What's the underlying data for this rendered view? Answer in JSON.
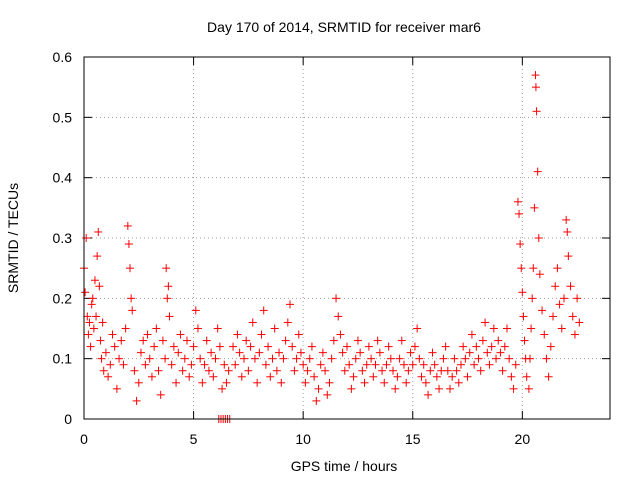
{
  "chart_data": {
    "type": "scatter",
    "title": "Day 170 of 2014, SRMTID for receiver mar6",
    "xlabel": "GPS time / hours",
    "ylabel": "SRMTID / TECUs",
    "xlim": [
      0,
      24
    ],
    "ylim": [
      0,
      0.6
    ],
    "xticks": [
      0,
      5,
      10,
      15,
      20
    ],
    "yticks": [
      0,
      0.1,
      0.2,
      0.3,
      0.4,
      0.5,
      0.6
    ],
    "xtick_labels": [
      "0",
      "5",
      "10",
      "15",
      "20"
    ],
    "ytick_labels": [
      "0",
      "0.1",
      "0.2",
      "0.3",
      "0.4",
      "0.5",
      "0.6"
    ],
    "grid": true,
    "marker": "+",
    "color": "#ff0000",
    "series": [
      {
        "name": "mar6",
        "points": [
          [
            0.0,
            0.25
          ],
          [
            0.05,
            0.21
          ],
          [
            0.1,
            0.3
          ],
          [
            0.15,
            0.17
          ],
          [
            0.2,
            0.14
          ],
          [
            0.25,
            0.16
          ],
          [
            0.3,
            0.12
          ],
          [
            0.35,
            0.19
          ],
          [
            0.4,
            0.2
          ],
          [
            0.45,
            0.15
          ],
          [
            0.5,
            0.23
          ],
          [
            0.55,
            0.17
          ],
          [
            0.6,
            0.27
          ],
          [
            0.65,
            0.31
          ],
          [
            0.7,
            0.22
          ],
          [
            0.75,
            0.13
          ],
          [
            0.8,
            0.1
          ],
          [
            0.85,
            0.16
          ],
          [
            0.9,
            0.08
          ],
          [
            1.0,
            0.11
          ],
          [
            1.1,
            0.07
          ],
          [
            1.2,
            0.09
          ],
          [
            1.3,
            0.14
          ],
          [
            1.4,
            0.12
          ],
          [
            1.5,
            0.05
          ],
          [
            1.6,
            0.1
          ],
          [
            1.7,
            0.13
          ],
          [
            1.8,
            0.09
          ],
          [
            1.9,
            0.15
          ],
          [
            2.0,
            0.32
          ],
          [
            2.05,
            0.29
          ],
          [
            2.1,
            0.25
          ],
          [
            2.15,
            0.2
          ],
          [
            2.2,
            0.18
          ],
          [
            2.3,
            0.08
          ],
          [
            2.4,
            0.03
          ],
          [
            2.5,
            0.06
          ],
          [
            2.6,
            0.11
          ],
          [
            2.7,
            0.13
          ],
          [
            2.8,
            0.09
          ],
          [
            2.9,
            0.14
          ],
          [
            3.0,
            0.1
          ],
          [
            3.1,
            0.07
          ],
          [
            3.2,
            0.12
          ],
          [
            3.3,
            0.15
          ],
          [
            3.4,
            0.08
          ],
          [
            3.5,
            0.04
          ],
          [
            3.6,
            0.13
          ],
          [
            3.7,
            0.1
          ],
          [
            3.75,
            0.25
          ],
          [
            3.8,
            0.2
          ],
          [
            3.85,
            0.22
          ],
          [
            3.9,
            0.17
          ],
          [
            4.0,
            0.09
          ],
          [
            4.1,
            0.12
          ],
          [
            4.2,
            0.06
          ],
          [
            4.3,
            0.11
          ],
          [
            4.4,
            0.14
          ],
          [
            4.5,
            0.08
          ],
          [
            4.6,
            0.1
          ],
          [
            4.7,
            0.13
          ],
          [
            4.8,
            0.07
          ],
          [
            4.9,
            0.09
          ],
          [
            5.0,
            0.12
          ],
          [
            5.1,
            0.18
          ],
          [
            5.2,
            0.15
          ],
          [
            5.3,
            0.1
          ],
          [
            5.4,
            0.06
          ],
          [
            5.5,
            0.09
          ],
          [
            5.6,
            0.13
          ],
          [
            5.7,
            0.08
          ],
          [
            5.8,
            0.11
          ],
          [
            5.9,
            0.07
          ],
          [
            6.0,
            0.1
          ],
          [
            6.1,
            0.15
          ],
          [
            6.2,
            0.12
          ],
          [
            6.3,
            0.05
          ],
          [
            6.4,
            0.09
          ],
          [
            6.5,
            0.06
          ],
          [
            6.6,
            0.08
          ],
          [
            6.15,
            0.0
          ],
          [
            6.25,
            0.0
          ],
          [
            6.35,
            0.0
          ],
          [
            6.45,
            0.0
          ],
          [
            6.55,
            0.0
          ],
          [
            6.65,
            0.0
          ],
          [
            6.8,
            0.12
          ],
          [
            6.9,
            0.09
          ],
          [
            7.0,
            0.14
          ],
          [
            7.1,
            0.11
          ],
          [
            7.2,
            0.07
          ],
          [
            7.3,
            0.1
          ],
          [
            7.4,
            0.13
          ],
          [
            7.5,
            0.08
          ],
          [
            7.6,
            0.12
          ],
          [
            7.7,
            0.16
          ],
          [
            7.8,
            0.1
          ],
          [
            7.9,
            0.06
          ],
          [
            8.0,
            0.11
          ],
          [
            8.1,
            0.14
          ],
          [
            8.2,
            0.18
          ],
          [
            8.3,
            0.09
          ],
          [
            8.4,
            0.12
          ],
          [
            8.5,
            0.07
          ],
          [
            8.6,
            0.1
          ],
          [
            8.7,
            0.15
          ],
          [
            8.8,
            0.08
          ],
          [
            8.9,
            0.11
          ],
          [
            9.0,
            0.06
          ],
          [
            9.1,
            0.1
          ],
          [
            9.2,
            0.13
          ],
          [
            9.3,
            0.16
          ],
          [
            9.4,
            0.19
          ],
          [
            9.5,
            0.12
          ],
          [
            9.6,
            0.08
          ],
          [
            9.7,
            0.1
          ],
          [
            9.8,
            0.14
          ],
          [
            9.9,
            0.11
          ],
          [
            10.0,
            0.09
          ],
          [
            10.1,
            0.06
          ],
          [
            10.2,
            0.08
          ],
          [
            10.3,
            0.1
          ],
          [
            10.4,
            0.12
          ],
          [
            10.5,
            0.07
          ],
          [
            10.6,
            0.03
          ],
          [
            10.7,
            0.05
          ],
          [
            10.8,
            0.09
          ],
          [
            10.9,
            0.11
          ],
          [
            11.0,
            0.08
          ],
          [
            11.1,
            0.04
          ],
          [
            11.2,
            0.06
          ],
          [
            11.3,
            0.1
          ],
          [
            11.4,
            0.13
          ],
          [
            11.5,
            0.2
          ],
          [
            11.6,
            0.17
          ],
          [
            11.7,
            0.14
          ],
          [
            11.8,
            0.11
          ],
          [
            11.9,
            0.08
          ],
          [
            12.0,
            0.12
          ],
          [
            12.1,
            0.09
          ],
          [
            12.2,
            0.05
          ],
          [
            12.3,
            0.07
          ],
          [
            12.4,
            0.1
          ],
          [
            12.5,
            0.13
          ],
          [
            12.6,
            0.11
          ],
          [
            12.7,
            0.08
          ],
          [
            12.8,
            0.06
          ],
          [
            12.9,
            0.09
          ],
          [
            13.0,
            0.12
          ],
          [
            13.1,
            0.1
          ],
          [
            13.2,
            0.07
          ],
          [
            13.3,
            0.09
          ],
          [
            13.4,
            0.13
          ],
          [
            13.5,
            0.11
          ],
          [
            13.6,
            0.08
          ],
          [
            13.7,
            0.06
          ],
          [
            13.8,
            0.09
          ],
          [
            13.9,
            0.12
          ],
          [
            14.0,
            0.1
          ],
          [
            14.1,
            0.08
          ],
          [
            14.2,
            0.05
          ],
          [
            14.3,
            0.07
          ],
          [
            14.4,
            0.1
          ],
          [
            14.5,
            0.13
          ],
          [
            14.6,
            0.09
          ],
          [
            14.7,
            0.06
          ],
          [
            14.8,
            0.08
          ],
          [
            14.9,
            0.11
          ],
          [
            15.0,
            0.09
          ],
          [
            15.1,
            0.12
          ],
          [
            15.2,
            0.15
          ],
          [
            15.3,
            0.1
          ],
          [
            15.4,
            0.07
          ],
          [
            15.5,
            0.09
          ],
          [
            15.6,
            0.06
          ],
          [
            15.7,
            0.04
          ],
          [
            15.8,
            0.08
          ],
          [
            15.9,
            0.11
          ],
          [
            16.0,
            0.09
          ],
          [
            16.1,
            0.07
          ],
          [
            16.2,
            0.05
          ],
          [
            16.3,
            0.08
          ],
          [
            16.4,
            0.1
          ],
          [
            16.5,
            0.12
          ],
          [
            16.6,
            0.08
          ],
          [
            16.7,
            0.05
          ],
          [
            16.8,
            0.07
          ],
          [
            16.9,
            0.1
          ],
          [
            17.0,
            0.08
          ],
          [
            17.1,
            0.06
          ],
          [
            17.2,
            0.09
          ],
          [
            17.3,
            0.12
          ],
          [
            17.4,
            0.1
          ],
          [
            17.5,
            0.07
          ],
          [
            17.6,
            0.11
          ],
          [
            17.7,
            0.14
          ],
          [
            17.8,
            0.09
          ],
          [
            17.9,
            0.12
          ],
          [
            18.0,
            0.1
          ],
          [
            18.1,
            0.08
          ],
          [
            18.2,
            0.13
          ],
          [
            18.3,
            0.16
          ],
          [
            18.4,
            0.11
          ],
          [
            18.5,
            0.09
          ],
          [
            18.6,
            0.12
          ],
          [
            18.7,
            0.15
          ],
          [
            18.8,
            0.1
          ],
          [
            18.9,
            0.13
          ],
          [
            19.0,
            0.11
          ],
          [
            19.1,
            0.08
          ],
          [
            19.2,
            0.12
          ],
          [
            19.3,
            0.15
          ],
          [
            19.4,
            0.1
          ],
          [
            19.5,
            0.07
          ],
          [
            19.6,
            0.05
          ],
          [
            19.7,
            0.09
          ],
          [
            19.8,
            0.36
          ],
          [
            19.85,
            0.34
          ],
          [
            19.9,
            0.29
          ],
          [
            19.95,
            0.25
          ],
          [
            20.0,
            0.21
          ],
          [
            20.05,
            0.17
          ],
          [
            20.1,
            0.13
          ],
          [
            20.15,
            0.1
          ],
          [
            20.2,
            0.07
          ],
          [
            20.3,
            0.05
          ],
          [
            20.35,
            0.1
          ],
          [
            20.4,
            0.15
          ],
          [
            20.45,
            0.2
          ],
          [
            20.5,
            0.25
          ],
          [
            20.55,
            0.35
          ],
          [
            20.6,
            0.57
          ],
          [
            20.62,
            0.55
          ],
          [
            20.65,
            0.51
          ],
          [
            20.7,
            0.41
          ],
          [
            20.75,
            0.3
          ],
          [
            20.8,
            0.24
          ],
          [
            20.9,
            0.18
          ],
          [
            21.0,
            0.14
          ],
          [
            21.1,
            0.1
          ],
          [
            21.2,
            0.07
          ],
          [
            21.3,
            0.12
          ],
          [
            21.4,
            0.17
          ],
          [
            21.5,
            0.22
          ],
          [
            21.6,
            0.25
          ],
          [
            21.7,
            0.19
          ],
          [
            21.8,
            0.15
          ],
          [
            21.9,
            0.2
          ],
          [
            22.0,
            0.33
          ],
          [
            22.05,
            0.31
          ],
          [
            22.1,
            0.27
          ],
          [
            22.2,
            0.22
          ],
          [
            22.3,
            0.17
          ],
          [
            22.4,
            0.14
          ],
          [
            22.5,
            0.2
          ],
          [
            22.6,
            0.16
          ]
        ]
      }
    ]
  }
}
